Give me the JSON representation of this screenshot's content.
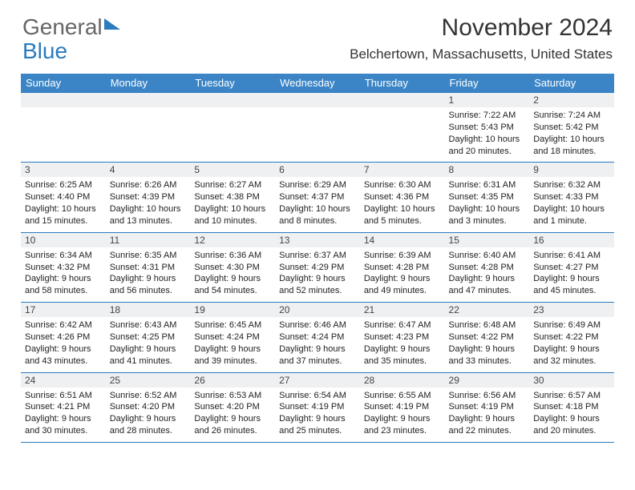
{
  "logo": {
    "general": "General",
    "blue": "Blue"
  },
  "title": "November 2024",
  "location": "Belchertown, Massachusetts, United States",
  "colors": {
    "header_bg": "#3b85c6",
    "row_shade": "#eef0f2",
    "border": "#2b7bbf",
    "logo_blue": "#2b7bbf",
    "text": "#333333"
  },
  "weekdays": [
    "Sunday",
    "Monday",
    "Tuesday",
    "Wednesday",
    "Thursday",
    "Friday",
    "Saturday"
  ],
  "weeks": [
    {
      "nums": [
        "",
        "",
        "",
        "",
        "",
        "1",
        "2"
      ],
      "cells": [
        null,
        null,
        null,
        null,
        null,
        {
          "sunrise": "7:22 AM",
          "sunset": "5:43 PM",
          "daylight": "10 hours and 20 minutes."
        },
        {
          "sunrise": "7:24 AM",
          "sunset": "5:42 PM",
          "daylight": "10 hours and 18 minutes."
        }
      ]
    },
    {
      "nums": [
        "3",
        "4",
        "5",
        "6",
        "7",
        "8",
        "9"
      ],
      "cells": [
        {
          "sunrise": "6:25 AM",
          "sunset": "4:40 PM",
          "daylight": "10 hours and 15 minutes."
        },
        {
          "sunrise": "6:26 AM",
          "sunset": "4:39 PM",
          "daylight": "10 hours and 13 minutes."
        },
        {
          "sunrise": "6:27 AM",
          "sunset": "4:38 PM",
          "daylight": "10 hours and 10 minutes."
        },
        {
          "sunrise": "6:29 AM",
          "sunset": "4:37 PM",
          "daylight": "10 hours and 8 minutes."
        },
        {
          "sunrise": "6:30 AM",
          "sunset": "4:36 PM",
          "daylight": "10 hours and 5 minutes."
        },
        {
          "sunrise": "6:31 AM",
          "sunset": "4:35 PM",
          "daylight": "10 hours and 3 minutes."
        },
        {
          "sunrise": "6:32 AM",
          "sunset": "4:33 PM",
          "daylight": "10 hours and 1 minute."
        }
      ]
    },
    {
      "nums": [
        "10",
        "11",
        "12",
        "13",
        "14",
        "15",
        "16"
      ],
      "cells": [
        {
          "sunrise": "6:34 AM",
          "sunset": "4:32 PM",
          "daylight": "9 hours and 58 minutes."
        },
        {
          "sunrise": "6:35 AM",
          "sunset": "4:31 PM",
          "daylight": "9 hours and 56 minutes."
        },
        {
          "sunrise": "6:36 AM",
          "sunset": "4:30 PM",
          "daylight": "9 hours and 54 minutes."
        },
        {
          "sunrise": "6:37 AM",
          "sunset": "4:29 PM",
          "daylight": "9 hours and 52 minutes."
        },
        {
          "sunrise": "6:39 AM",
          "sunset": "4:28 PM",
          "daylight": "9 hours and 49 minutes."
        },
        {
          "sunrise": "6:40 AM",
          "sunset": "4:28 PM",
          "daylight": "9 hours and 47 minutes."
        },
        {
          "sunrise": "6:41 AM",
          "sunset": "4:27 PM",
          "daylight": "9 hours and 45 minutes."
        }
      ]
    },
    {
      "nums": [
        "17",
        "18",
        "19",
        "20",
        "21",
        "22",
        "23"
      ],
      "cells": [
        {
          "sunrise": "6:42 AM",
          "sunset": "4:26 PM",
          "daylight": "9 hours and 43 minutes."
        },
        {
          "sunrise": "6:43 AM",
          "sunset": "4:25 PM",
          "daylight": "9 hours and 41 minutes."
        },
        {
          "sunrise": "6:45 AM",
          "sunset": "4:24 PM",
          "daylight": "9 hours and 39 minutes."
        },
        {
          "sunrise": "6:46 AM",
          "sunset": "4:24 PM",
          "daylight": "9 hours and 37 minutes."
        },
        {
          "sunrise": "6:47 AM",
          "sunset": "4:23 PM",
          "daylight": "9 hours and 35 minutes."
        },
        {
          "sunrise": "6:48 AM",
          "sunset": "4:22 PM",
          "daylight": "9 hours and 33 minutes."
        },
        {
          "sunrise": "6:49 AM",
          "sunset": "4:22 PM",
          "daylight": "9 hours and 32 minutes."
        }
      ]
    },
    {
      "nums": [
        "24",
        "25",
        "26",
        "27",
        "28",
        "29",
        "30"
      ],
      "cells": [
        {
          "sunrise": "6:51 AM",
          "sunset": "4:21 PM",
          "daylight": "9 hours and 30 minutes."
        },
        {
          "sunrise": "6:52 AM",
          "sunset": "4:20 PM",
          "daylight": "9 hours and 28 minutes."
        },
        {
          "sunrise": "6:53 AM",
          "sunset": "4:20 PM",
          "daylight": "9 hours and 26 minutes."
        },
        {
          "sunrise": "6:54 AM",
          "sunset": "4:19 PM",
          "daylight": "9 hours and 25 minutes."
        },
        {
          "sunrise": "6:55 AM",
          "sunset": "4:19 PM",
          "daylight": "9 hours and 23 minutes."
        },
        {
          "sunrise": "6:56 AM",
          "sunset": "4:19 PM",
          "daylight": "9 hours and 22 minutes."
        },
        {
          "sunrise": "6:57 AM",
          "sunset": "4:18 PM",
          "daylight": "9 hours and 20 minutes."
        }
      ]
    }
  ],
  "labels": {
    "sunrise": "Sunrise:",
    "sunset": "Sunset:",
    "daylight": "Daylight:"
  }
}
